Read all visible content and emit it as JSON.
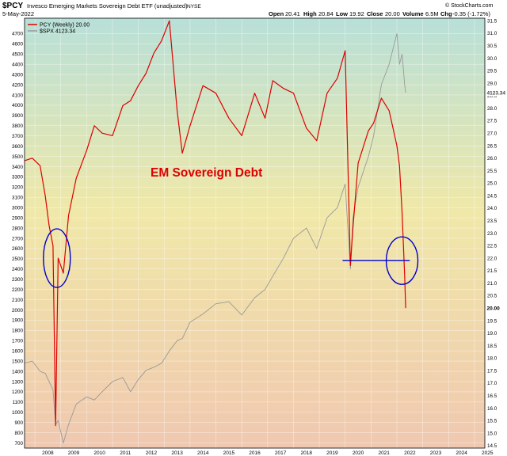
{
  "header": {
    "symbol": "$PCY",
    "name": "Invesco Emerging Markets Sovereign Debt ETF (unadjusted)",
    "exchange": "NYSE",
    "date": "5-May-2022",
    "open_label": "Open",
    "open": "20.41",
    "high_label": "High",
    "high": "20.84",
    "low_label": "Low",
    "low": "19.92",
    "close_label": "Close",
    "close": "20.00",
    "volume_label": "Volume",
    "volume": "6.5M",
    "chg_label": "Chg",
    "chg": "-0.35 (-1.72%)",
    "watermark": "© StockCharts.com"
  },
  "colors": {
    "pcy": "#dd0000",
    "spx": "#999999",
    "annotation": "#0000cc",
    "bg_top": "#b8e0d8",
    "bg_mid": "#f0e8a8",
    "bg_bottom": "#f0c8b0"
  },
  "chart_data": {
    "type": "line",
    "title": "EM Sovereign Debt",
    "legend": {
      "placement": "top-left"
    },
    "grid": true,
    "x": [
      2007.6,
      2007.9,
      2008.2,
      2008.4,
      2008.55,
      2008.7,
      2008.8,
      2008.9,
      2009.1,
      2009.3,
      2009.6,
      2010.0,
      2010.3,
      2010.6,
      2011.0,
      2011.4,
      2011.7,
      2012.0,
      2012.3,
      2012.6,
      2012.9,
      2013.2,
      2013.5,
      2013.7,
      2014.0,
      2014.5,
      2015.0,
      2015.5,
      2016.0,
      2016.5,
      2016.9,
      2017.2,
      2017.6,
      2018.0,
      2018.5,
      2018.9,
      2019.3,
      2019.7,
      2020.0,
      2020.2,
      2020.3,
      2020.5,
      2020.9,
      2021.1,
      2021.4,
      2021.7,
      2022.0,
      2022.1,
      2022.2,
      2022.3,
      2022.34
    ],
    "series": [
      {
        "name": "PCY (Weekly) 20.00",
        "axis": "right",
        "values": [
          25.9,
          26.0,
          25.7,
          24.5,
          23.3,
          22.5,
          15.3,
          22.0,
          21.4,
          23.7,
          25.2,
          26.3,
          27.3,
          27.0,
          26.9,
          28.1,
          28.3,
          28.9,
          29.4,
          30.2,
          30.7,
          31.5,
          27.9,
          26.2,
          27.3,
          28.9,
          28.6,
          27.6,
          26.9,
          28.6,
          27.6,
          29.1,
          28.8,
          28.6,
          27.2,
          26.7,
          28.6,
          29.2,
          30.3,
          21.7,
          23.2,
          25.8,
          27.1,
          27.4,
          28.4,
          27.9,
          26.5,
          25.7,
          23.8,
          21.3,
          20.0
        ]
      },
      {
        "name": "$SPX 4123.34",
        "axis": "left",
        "values": [
          1480,
          1500,
          1400,
          1380,
          1300,
          1220,
          880,
          920,
          700,
          880,
          1080,
          1150,
          1120,
          1200,
          1300,
          1340,
          1200,
          1320,
          1410,
          1440,
          1480,
          1600,
          1700,
          1720,
          1880,
          1960,
          2060,
          2080,
          1950,
          2120,
          2200,
          2330,
          2500,
          2700,
          2800,
          2600,
          2900,
          3000,
          3230,
          2400,
          2900,
          3200,
          3500,
          3700,
          4200,
          4400,
          4700,
          4400,
          4500,
          4200,
          4123
        ]
      }
    ],
    "xlim": [
      2007.6,
      2025.4
    ],
    "ylim_left": [
      650,
      4850
    ],
    "ylim_right": [
      14.4,
      31.6
    ],
    "x_ticks": [
      "2008",
      "2009",
      "2010",
      "2011",
      "2012",
      "2013",
      "2014",
      "2015",
      "2016",
      "2017",
      "2018",
      "2019",
      "2020",
      "2021",
      "2022",
      "2023",
      "2024",
      "2025"
    ],
    "y_ticks_left": [
      700,
      800,
      900,
      1000,
      1100,
      1200,
      1300,
      1400,
      1500,
      1600,
      1700,
      1800,
      1900,
      2000,
      2100,
      2200,
      2300,
      2400,
      2500,
      2600,
      2700,
      2800,
      2900,
      3000,
      3100,
      3200,
      3300,
      3400,
      3500,
      3600,
      3700,
      3800,
      3900,
      4000,
      4100,
      4200,
      4300,
      4400,
      4500,
      4600,
      4700
    ],
    "y_ticks_right": [
      "14.5",
      "15.0",
      "15.5",
      "16.0",
      "16.5",
      "17.0",
      "17.5",
      "18.0",
      "18.5",
      "19.0",
      "19.5",
      "20.0",
      "20.5",
      "21.0",
      "21.5",
      "22.0",
      "22.5",
      "23.0",
      "23.5",
      "24.0",
      "24.5",
      "25.0",
      "25.5",
      "26.0",
      "26.5",
      "27.0",
      "27.5",
      "28.0",
      "28.5",
      "29.0",
      "29.5",
      "30.0",
      "30.5",
      "31.0",
      "31.5"
    ],
    "last_value_tags": {
      "spx": "4123.34",
      "pcy": "20.00"
    },
    "annotations": {
      "circles": [
        {
          "x": 2008.85,
          "y": 22.0,
          "axis": "right"
        },
        {
          "x": 2022.2,
          "y": 21.9,
          "axis": "right"
        }
      ],
      "hline": {
        "y": 21.9,
        "x_from": 2019.9,
        "x_to": 2022.5,
        "axis": "right"
      }
    }
  }
}
